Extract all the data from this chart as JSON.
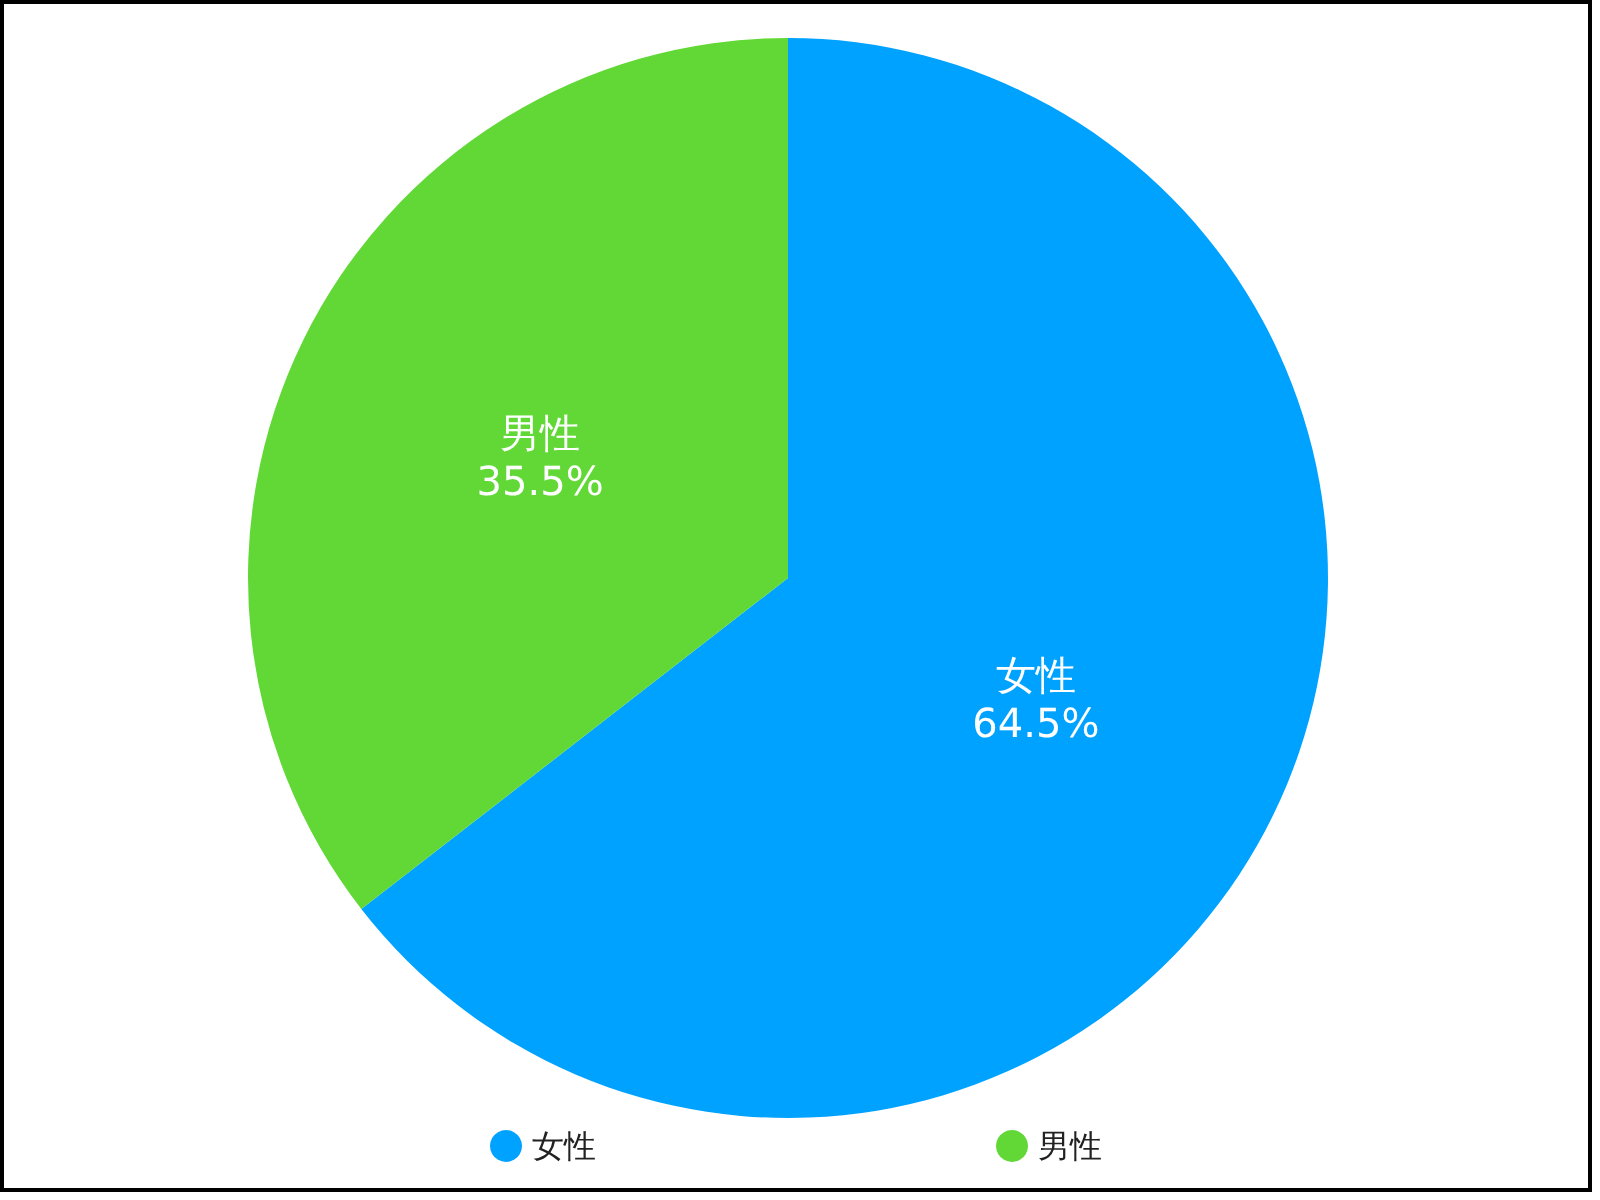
{
  "chart_data": {
    "type": "pie",
    "categories": [
      "女性",
      "男性"
    ],
    "values": [
      64.5,
      35.5
    ],
    "colors": [
      "#00a2ff",
      "#61d836"
    ],
    "value_labels": [
      "64.5%",
      "35.5%"
    ],
    "legend": "bottom"
  }
}
